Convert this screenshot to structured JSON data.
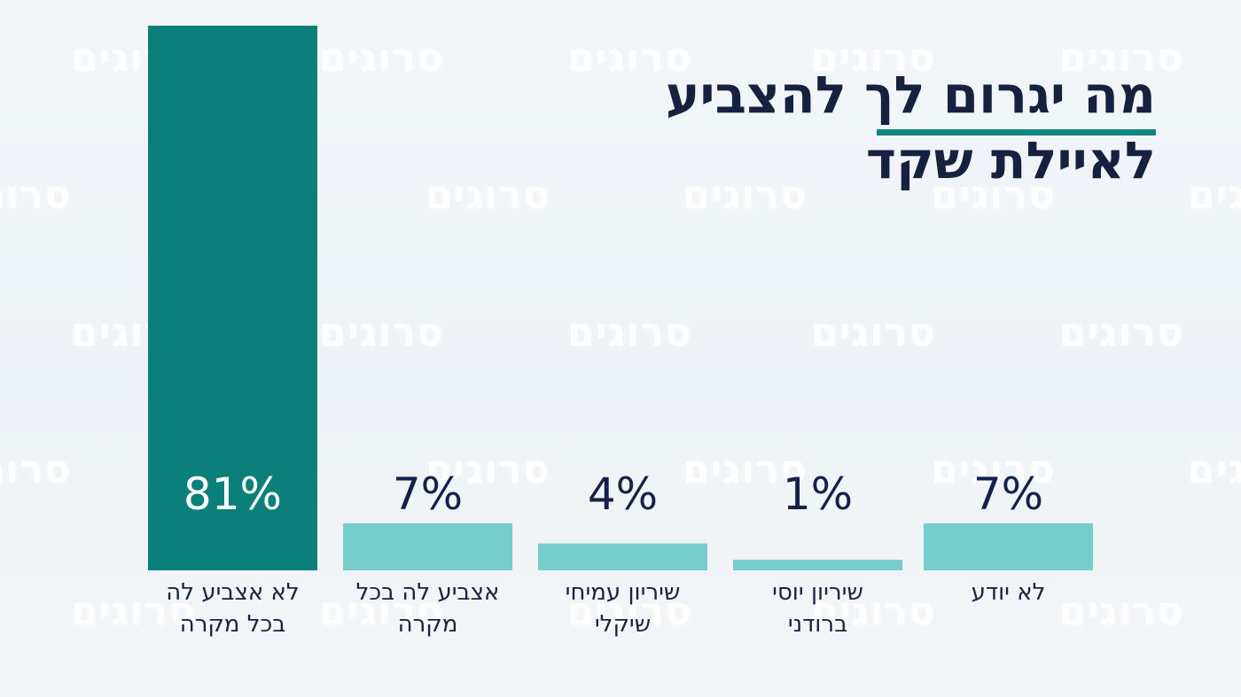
{
  "watermark_text": "סרוגים",
  "title": {
    "line1": "מה יגרום לך להצביע",
    "line2": "לאיילת שקד"
  },
  "colors": {
    "highlight_bar": "#0b7f7a",
    "bar": "#77cccc",
    "value_on_dark": "#ffffff",
    "value_on_light": "#17204a",
    "title": "#16213f",
    "underline": "#12857f"
  },
  "chart_data": {
    "type": "bar",
    "title": "מה יגרום לך להצביע לאיילת שקד",
    "categories": [
      [
        "לא אצביע לה",
        "בכל מקרה"
      ],
      [
        "אצביע לה בכל",
        "מקרה"
      ],
      [
        "שיריון עמיחי",
        "שיקלי"
      ],
      [
        "שיריון יוסי",
        "ברודני"
      ],
      [
        "לא יודע"
      ]
    ],
    "values": [
      81,
      7,
      4,
      1,
      7
    ],
    "value_labels": [
      "81%",
      "7%",
      "4%",
      "1%",
      "7%"
    ],
    "unit": "%",
    "ylim": [
      0,
      81
    ],
    "grid": false,
    "legend": "none",
    "highlight_index": 0
  }
}
